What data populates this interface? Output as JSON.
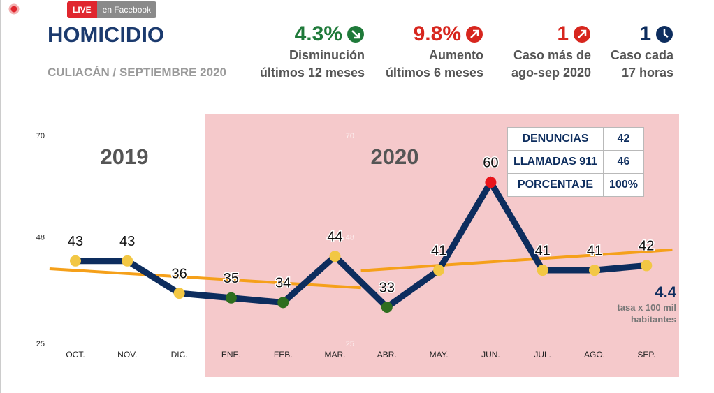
{
  "badge": {
    "live": "LIVE",
    "source": "en Facebook"
  },
  "header": {
    "title": "HOMICIDIO",
    "subtitle": "CULIACÁN / SEPTIEMBRE 2020"
  },
  "stats": [
    {
      "value": "4.3%",
      "color": "#1f7a3a",
      "lines": [
        "Disminución",
        "últimos 12 meses"
      ]
    },
    {
      "value": "9.8%",
      "color": "#d7261e",
      "lines": [
        "Aumento",
        "últimos 6 meses"
      ]
    },
    {
      "value": "1",
      "color": "#d7261e",
      "lines": [
        "Caso más de",
        "ago-sep 2020"
      ]
    },
    {
      "value": "1",
      "color": "#0d2d5e",
      "lines": [
        "Caso cada",
        "17 horas"
      ]
    }
  ],
  "table": {
    "rows": [
      [
        "DENUNCIAS",
        "42"
      ],
      [
        "LLAMADAS 911",
        "46"
      ],
      [
        "PORCENTAJE",
        "100%"
      ]
    ]
  },
  "chart_data": {
    "type": "line",
    "categories": [
      "OCT.",
      "NOV.",
      "DIC.",
      "ENE.",
      "FEB.",
      "MAR.",
      "ABR.",
      "MAY.",
      "JUN.",
      "JUL.",
      "AGO.",
      "SEP."
    ],
    "values": [
      43,
      43,
      36,
      35,
      34,
      44,
      33,
      41,
      60,
      41,
      41,
      42
    ],
    "color": "#0d2d5e",
    "marker_colors": [
      "#f2c744",
      "#f2c744",
      "#f2c744",
      "#2f6e1f",
      "#2f6e1f",
      "#f2c744",
      "#2f6e1f",
      "#f2c744",
      "#e8141b",
      "#f2c744",
      "#f2c744",
      "#f2c744"
    ],
    "ylim": [
      25,
      70
    ],
    "yticks": [
      25,
      48,
      70
    ],
    "trends": [
      {
        "color": "#f5a01a",
        "x": [
          -0.5,
          5.5
        ],
        "values": [
          41.3,
          37.2
        ]
      },
      {
        "color": "#f5a01a",
        "x": [
          5.5,
          11.5
        ],
        "values": [
          40.9,
          45.4
        ]
      }
    ],
    "annotations": [
      "2019",
      "2020"
    ],
    "rate": {
      "value": "4.4",
      "lines": [
        "tasa x 100 mil",
        "habitantes"
      ]
    }
  }
}
